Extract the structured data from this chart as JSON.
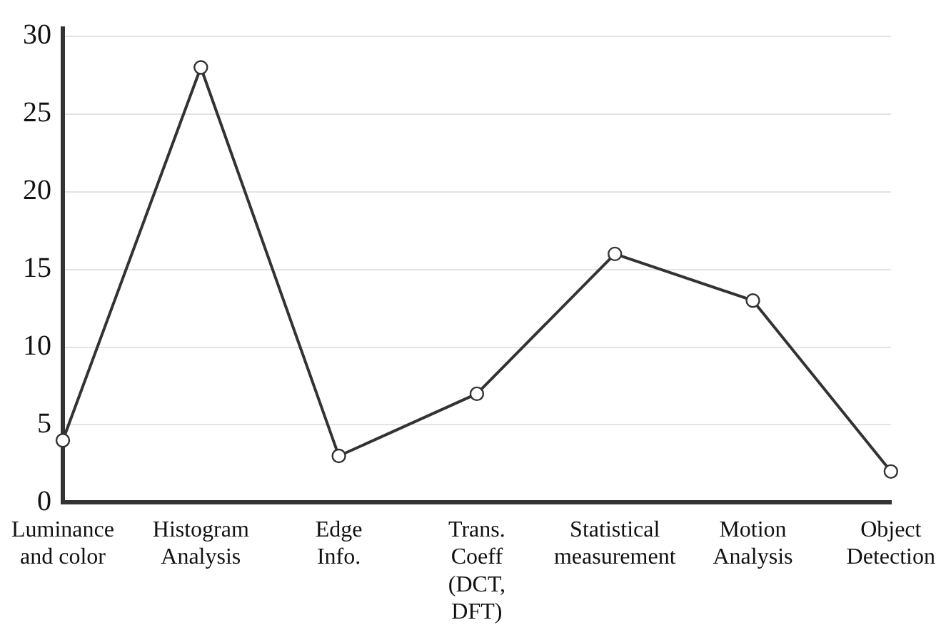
{
  "chart_data": {
    "type": "line",
    "categories": [
      "Luminance\nand color",
      "Histogram\nAnalysis",
      "Edge\nInfo.",
      "Trans.\nCoeff\n(DCT,\nDFT)",
      "Statistical\nmeasurement",
      "Motion\nAnalysis",
      "Object\nDetection"
    ],
    "series": [
      {
        "color": "#333333",
        "values": [
          4,
          28,
          3,
          7,
          16,
          13,
          2
        ]
      }
    ],
    "ylim": [
      0,
      30.5
    ],
    "yticks": [
      0,
      5,
      10,
      15,
      20,
      25,
      30
    ],
    "grid": "y",
    "marker": "circle",
    "line_style": "solid",
    "legend": false
  }
}
